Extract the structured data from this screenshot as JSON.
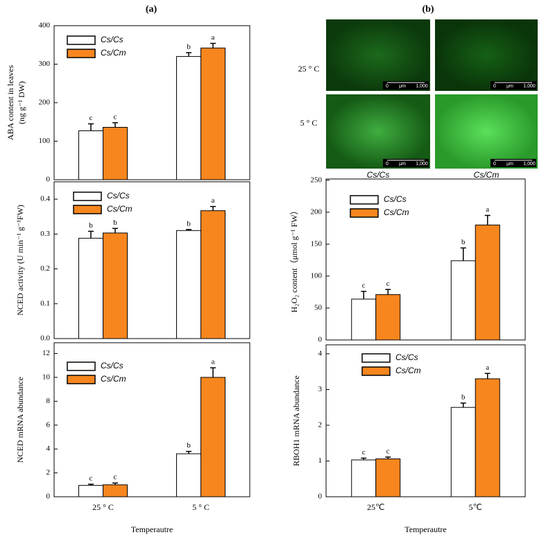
{
  "panels": [
    "(a)",
    "(b)"
  ],
  "micrographs": {
    "rows": [
      "25 ° C",
      "5 ° C"
    ],
    "columns": [
      "Cs/Cs",
      "Cs/Cm"
    ],
    "scale_bar": {
      "start": "0",
      "unit": "μm",
      "end": "1,000"
    }
  },
  "chart_data": [
    {
      "type": "bar",
      "ylabel": [
        "ABA content in leaves",
        "(ng g⁻¹ DW)"
      ],
      "categories": [
        null,
        null
      ],
      "ylim": [
        0,
        400
      ],
      "yticks": [
        0,
        100,
        200,
        300,
        400
      ],
      "series": [
        {
          "name": "Cs/Cs",
          "color": "#ffffff",
          "values": [
            127,
            320
          ],
          "errors": [
            18,
            10
          ],
          "letters": [
            "c",
            "b"
          ]
        },
        {
          "name": "Cs/Cm",
          "color": "#f7861e",
          "values": [
            136,
            342
          ],
          "errors": [
            12,
            12
          ],
          "letters": [
            "c",
            "a"
          ]
        }
      ]
    },
    {
      "type": "bar",
      "ylabel": [
        "NCED activity (U min⁻¹ g⁻¹FW)"
      ],
      "categories": [
        null,
        null
      ],
      "ylim": [
        0,
        0.45
      ],
      "yticks": [
        {
          "value": 0,
          "label": "0.0"
        },
        0.1,
        0.2,
        0.3,
        0.4
      ],
      "series": [
        {
          "name": "Cs/Cs",
          "color": "#ffffff",
          "values": [
            0.288,
            0.31
          ],
          "errors": [
            0.02,
            0.003
          ],
          "letters": [
            "b",
            "b"
          ]
        },
        {
          "name": "Cs/Cm",
          "color": "#f7861e",
          "values": [
            0.303,
            0.367
          ],
          "errors": [
            0.013,
            0.012
          ],
          "letters": [
            "b",
            "a"
          ]
        }
      ]
    },
    {
      "type": "bar",
      "ylabel": [
        "NCED mRNA abundance"
      ],
      "categories": [
        "25 ° C",
        "5 ° C"
      ],
      "xlabel": "Temperautre",
      "ylim": [
        0,
        12.9
      ],
      "yticks": [
        0,
        2,
        4,
        6,
        8,
        10,
        12
      ],
      "series": [
        {
          "name": "Cs/Cs",
          "color": "#ffffff",
          "values": [
            0.95,
            3.6
          ],
          "errors": [
            0.1,
            0.2
          ],
          "letters": [
            "c",
            "b"
          ]
        },
        {
          "name": "Cs/Cm",
          "color": "#f7861e",
          "values": [
            1.0,
            10.0
          ],
          "errors": [
            0.15,
            0.8
          ],
          "letters": [
            "c",
            "a"
          ]
        }
      ]
    },
    {
      "type": "bar",
      "ylabel": [
        "H₂O₂ content（μmol g⁻¹ FW）"
      ],
      "categories": [
        null,
        null
      ],
      "ylim": [
        0,
        252
      ],
      "yticks": [
        0,
        50,
        100,
        150,
        200,
        250
      ],
      "series": [
        {
          "name": "Cs/Cs",
          "color": "#ffffff",
          "values": [
            64,
            124
          ],
          "errors": [
            12,
            20
          ],
          "letters": [
            "c",
            "b"
          ]
        },
        {
          "name": "Cs/Cm",
          "color": "#f7861e",
          "values": [
            71,
            180
          ],
          "errors": [
            8,
            15
          ],
          "letters": [
            "c",
            "a"
          ]
        }
      ]
    },
    {
      "type": "bar",
      "ylabel": [
        "RBOH1 mRNA abundance"
      ],
      "categories": [
        "25℃",
        "5℃"
      ],
      "xlabel": "Temperautre",
      "ylim": [
        0,
        4.25
      ],
      "yticks": [
        0,
        1,
        2,
        3,
        4
      ],
      "series": [
        {
          "name": "Cs/Cs",
          "color": "#ffffff",
          "values": [
            1.03,
            2.5
          ],
          "errors": [
            0.05,
            0.12
          ],
          "letters": [
            "c",
            "b"
          ]
        },
        {
          "name": "Cs/Cm",
          "color": "#f7861e",
          "values": [
            1.06,
            3.3
          ],
          "errors": [
            0.05,
            0.15
          ],
          "letters": [
            "c",
            "a"
          ]
        }
      ]
    }
  ]
}
